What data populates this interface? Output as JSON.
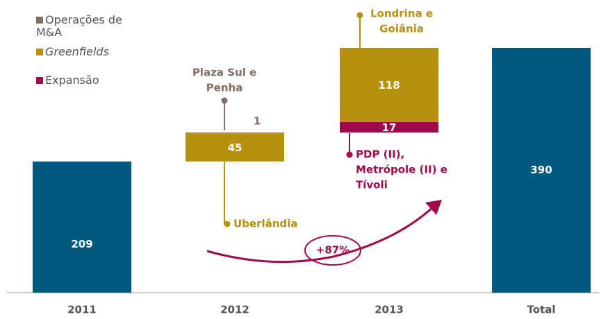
{
  "chart_data": {
    "type": "waterfall",
    "categories": [
      "2011",
      "2012",
      "2013",
      "Total"
    ],
    "totals": {
      "color": "#005a80",
      "values": [
        209,
        null,
        null,
        390
      ]
    },
    "series": [
      {
        "name": "Operações de M&A",
        "color": "#7f7263",
        "values": [
          null,
          1,
          null,
          null
        ]
      },
      {
        "name": "Greenfields",
        "color": "#b8900f",
        "values": [
          null,
          45,
          118,
          null
        ]
      },
      {
        "name": "Expansão",
        "color": "#a0094a",
        "values": [
          null,
          null,
          17,
          null
        ]
      }
    ],
    "annotations": [
      {
        "lines": [
          "Plaza Sul e",
          "Penha"
        ],
        "color": "#7f7263"
      },
      {
        "lines": [
          "Uberlândia"
        ],
        "color": "#b8900f"
      },
      {
        "lines": [
          "Londrina e",
          "Goiânia"
        ],
        "color": "#b8900f"
      },
      {
        "lines": [
          "PDP (II),",
          "Metrópole (II) e",
          "Tívoli"
        ],
        "color": "#a0094a"
      }
    ],
    "growth_label": "+87%"
  }
}
